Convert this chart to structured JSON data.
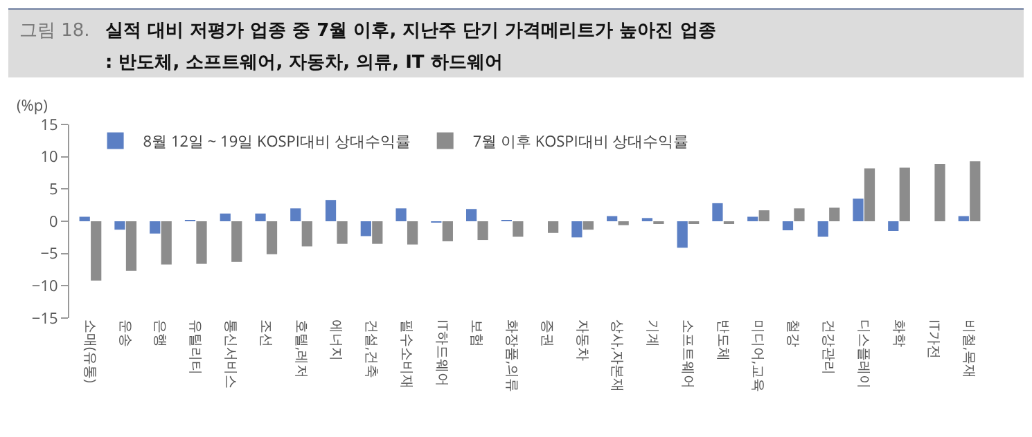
{
  "chart_data": {
    "type": "bar",
    "title": "그림 18. 실적 대비 저평가 업종 중 7월 이후, 지난주 단기 가격메리트가 높아진 업종",
    "subtitle": ": 반도체, 소프트웨어, 자동차, 의류, IT 하드웨어",
    "ylabel": "(%p)",
    "categories": [
      "소매(유통)",
      "운송",
      "은행",
      "유틸리티",
      "통신서비스",
      "조선",
      "호텔,레저",
      "에너지",
      "건설,건축",
      "필수소비재",
      "IT하드웨어",
      "보험",
      "화장품,의류",
      "증권",
      "자동차",
      "상사,자본재",
      "기계",
      "소프트웨어",
      "반도체",
      "미디어,교육",
      "철강",
      "건강관리",
      "디스플레이",
      "화학",
      "IT가전",
      "비철,목재"
    ],
    "series": [
      {
        "name": "8월 12일 ~ 19일 KOSPI대비 상대수익률",
        "color": "#5b7fc4",
        "values": [
          0.7,
          -1.3,
          -1.9,
          0.1,
          1.2,
          1.2,
          2.0,
          3.3,
          -2.3,
          2.0,
          -0.1,
          1.9,
          0.2,
          0.0,
          -2.5,
          0.8,
          0.5,
          -4.1,
          2.8,
          0.7,
          -1.4,
          -2.4,
          3.5,
          -1.5,
          0.0,
          0.8
        ]
      },
      {
        "name": "7월 이후 KOSPI대비 상대수익률",
        "color": "#8c8c8c",
        "values": [
          -9.2,
          -7.7,
          -6.7,
          -6.6,
          -6.3,
          -5.1,
          -3.9,
          -3.5,
          -3.5,
          -3.6,
          -3.1,
          -2.9,
          -2.4,
          -1.8,
          -1.3,
          -0.6,
          -0.3,
          -0.3,
          -0.3,
          1.7,
          2.0,
          2.1,
          8.2,
          8.3,
          8.9,
          9.3
        ]
      }
    ],
    "ylim": [
      -15,
      15
    ],
    "yticks": [
      -15,
      -10,
      -5,
      0,
      5,
      10,
      15
    ],
    "legend": "top left"
  }
}
